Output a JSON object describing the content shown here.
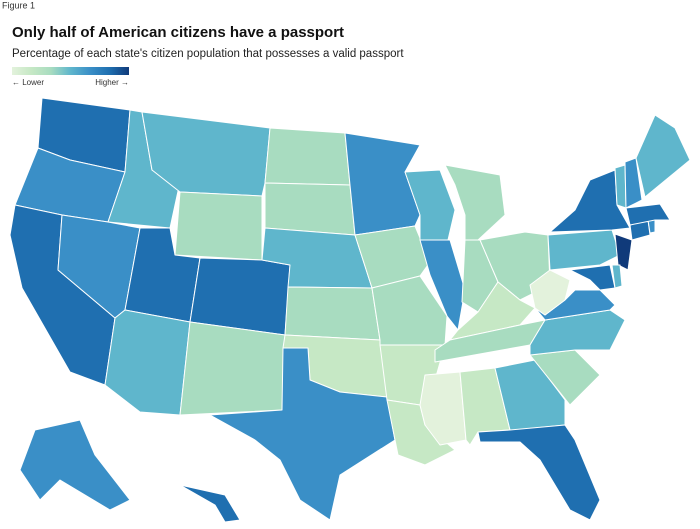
{
  "header": {
    "figure_label": "Figure 1",
    "title": "Only half of American citizens have a passport",
    "subtitle": "Percentage of each state's citizen population that possesses a valid passport"
  },
  "legend": {
    "low_label": "← Lower",
    "high_label": "Higher →",
    "colors": [
      "#e3f2dc",
      "#c6e8c5",
      "#a8dcc0",
      "#5fb6cc",
      "#3a8fc7",
      "#1f6fb0",
      "#103a7a"
    ]
  },
  "map": {
    "region_colors": [
      "#1f6fb0",
      "#3a8fc7",
      "#1f6fb0",
      "#5fb6cc",
      "#3a8fc7",
      "#5fb6cc",
      "#a8dcc0",
      "#1f6fb0",
      "#5fb6cc",
      "#1f6fb0",
      "#a8dcc0",
      "#a8dcc0",
      "#a8dcc0",
      "#5fb6cc",
      "#a8dcc0",
      "#c6e8c5",
      "#3a8fc7",
      "#3a8fc7",
      "#a8dcc0",
      "#a8dcc0",
      "#c6e8c5",
      "#c6e8c5",
      "#5fb6cc",
      "#3a8fc7",
      "#a8dcc0",
      "#a8dcc0",
      "#a8dcc0",
      "#c6e8c5",
      "#a8dcc0",
      "#e3f2dc",
      "#c6e8c5",
      "#5fb6cc",
      "#1f6fb0",
      "#a8dcc0",
      "#5fb6cc",
      "#3a8fc7",
      "#e3f2dc",
      "#5fb6cc",
      "#1f6fb0",
      "#103a7a",
      "#1f6fb0",
      "#5fb6cc",
      "#1f6fb0",
      "#3a8fc7",
      "#1f6fb0",
      "#5fb6cc",
      "#3a8fc7",
      "#5fb6cc",
      "#3a8fc7",
      "#1f6fb0"
    ]
  }
}
